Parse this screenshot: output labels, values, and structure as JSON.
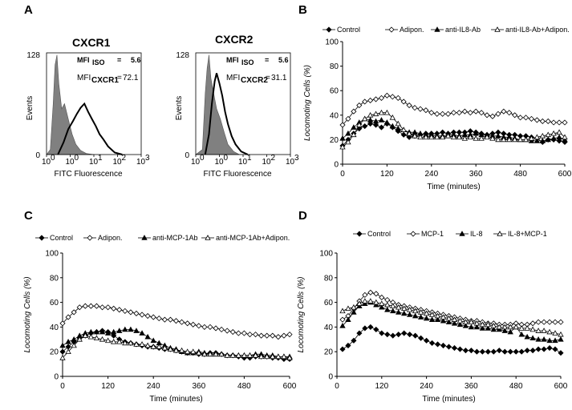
{
  "panels": {
    "a": {
      "letter": "A",
      "histograms": [
        {
          "title": "CXCR1",
          "ylabel": "Events",
          "xlabel": "FITC Fluorescence",
          "ytick_top": "128",
          "ytick_bottom": "0",
          "xticks": [
            "10",
            "10",
            "10",
            "10",
            "10"
          ],
          "xtick_exps": [
            "0",
            "0",
            "1",
            "2",
            "3"
          ],
          "mfi_iso_label": "MFI",
          "mfi_iso_sub": "ISO",
          "mfi_iso_eq": "=",
          "mfi_iso_value": "5.6",
          "mfi_rec_label": "MFI",
          "mfi_rec_sub": "CXCR1",
          "mfi_rec_eq": "=",
          "mfi_rec_value": "72.1"
        },
        {
          "title": "CXCR2",
          "ylabel": "Events",
          "xlabel": "FITC Fluorescence",
          "ytick_top": "128",
          "ytick_bottom": "0",
          "xticks": [
            "10",
            "10",
            "10",
            "10",
            "10"
          ],
          "xtick_exps": [
            "0",
            "0",
            "1",
            "2",
            "3"
          ],
          "mfi_iso_label": "MFI",
          "mfi_iso_sub": "ISO",
          "mfi_iso_eq": "=",
          "mfi_iso_value": "5.6",
          "mfi_rec_label": "MFI",
          "mfi_rec_sub": "CXCR2",
          "mfi_rec_eq": "=",
          "mfi_rec_value": "31.1"
        }
      ]
    },
    "b": {
      "letter": "B"
    },
    "c": {
      "letter": "C"
    },
    "d": {
      "letter": "D"
    }
  },
  "colors": {
    "ink": "#000000",
    "fill": "#808080",
    "hollow": "#ffffff",
    "grid": "#c0c0c0"
  },
  "chart_data": [
    {
      "id": "B",
      "type": "line",
      "xlabel": "Time (minutes)",
      "ylabel": "Locomoting Cells (%)",
      "xlim": [
        0,
        600
      ],
      "ylim": [
        0,
        100
      ],
      "xticks": [
        0,
        120,
        240,
        360,
        480,
        600
      ],
      "yticks": [
        0,
        20,
        40,
        60,
        80,
        100
      ],
      "legend_position": "top",
      "x": [
        0,
        15,
        30,
        45,
        60,
        75,
        90,
        105,
        120,
        135,
        150,
        165,
        180,
        195,
        210,
        225,
        240,
        255,
        270,
        285,
        300,
        315,
        330,
        345,
        360,
        375,
        390,
        405,
        420,
        435,
        450,
        465,
        480,
        495,
        510,
        525,
        540,
        555,
        570,
        585,
        600
      ],
      "series": [
        {
          "name": "Control",
          "marker": "diamond-filled",
          "values": [
            15,
            20,
            25,
            29,
            31,
            33,
            32,
            30,
            33,
            30,
            27,
            24,
            22,
            23,
            24,
            25,
            25,
            25,
            26,
            25,
            26,
            26,
            26,
            27,
            26,
            25,
            24,
            25,
            26,
            25,
            24,
            24,
            23,
            23,
            22,
            21,
            18,
            20,
            20,
            19,
            18
          ]
        },
        {
          "name": "Adipon.",
          "marker": "diamond-open",
          "values": [
            32,
            37,
            43,
            48,
            51,
            52,
            53,
            54,
            56,
            55,
            54,
            51,
            48,
            46,
            45,
            44,
            42,
            41,
            41,
            41,
            42,
            42,
            43,
            42,
            43,
            42,
            40,
            39,
            41,
            43,
            42,
            40,
            38,
            38,
            37,
            36,
            35,
            35,
            34,
            34,
            34
          ]
        },
        {
          "name": "anti-IL8-Ab",
          "marker": "triangle-filled",
          "values": [
            21,
            25,
            30,
            34,
            37,
            36,
            35,
            36,
            34,
            31,
            29,
            28,
            26,
            26,
            25,
            24,
            24,
            23,
            23,
            24,
            24,
            23,
            24,
            24,
            25,
            24,
            24,
            23,
            23,
            22,
            22,
            21,
            20,
            20,
            19,
            19,
            19,
            20,
            21,
            22,
            20
          ]
        },
        {
          "name": "anti-IL8-Ab+Adipon.",
          "marker": "triangle-open",
          "values": [
            14,
            18,
            24,
            32,
            37,
            40,
            41,
            42,
            42,
            38,
            33,
            28,
            25,
            23,
            22,
            22,
            22,
            22,
            22,
            23,
            22,
            22,
            21,
            22,
            21,
            21,
            22,
            21,
            20,
            20,
            20,
            20,
            20,
            20,
            21,
            22,
            23,
            24,
            25,
            26,
            22
          ]
        }
      ]
    },
    {
      "id": "C",
      "type": "line",
      "xlabel": "Time (minutes)",
      "ylabel": "Locomoting Cells (%)",
      "xlim": [
        0,
        600
      ],
      "ylim": [
        0,
        100
      ],
      "xticks": [
        0,
        120,
        240,
        360,
        480,
        600
      ],
      "yticks": [
        0,
        20,
        40,
        60,
        80,
        100
      ],
      "legend_position": "top",
      "x": [
        0,
        15,
        30,
        45,
        60,
        75,
        90,
        105,
        120,
        135,
        150,
        165,
        180,
        195,
        210,
        225,
        240,
        255,
        270,
        285,
        300,
        315,
        330,
        345,
        360,
        375,
        390,
        405,
        420,
        435,
        450,
        465,
        480,
        495,
        510,
        525,
        540,
        555,
        570,
        585,
        600
      ],
      "series": [
        {
          "name": "Control",
          "marker": "diamond-filled",
          "values": [
            20,
            24,
            28,
            31,
            33,
            35,
            36,
            37,
            36,
            33,
            30,
            28,
            27,
            26,
            25,
            24,
            24,
            23,
            22,
            22,
            21,
            20,
            19,
            19,
            18,
            18,
            19,
            19,
            18,
            17,
            17,
            16,
            15,
            15,
            16,
            16,
            16,
            15,
            15,
            14,
            14
          ]
        },
        {
          "name": "Adipon.",
          "marker": "diamond-open",
          "values": [
            43,
            48,
            52,
            56,
            57,
            57,
            57,
            56,
            56,
            55,
            54,
            53,
            52,
            51,
            50,
            49,
            48,
            47,
            46,
            46,
            45,
            44,
            43,
            42,
            41,
            40,
            40,
            39,
            38,
            37,
            36,
            35,
            35,
            34,
            34,
            33,
            33,
            33,
            32,
            33,
            34
          ]
        },
        {
          "name": "anti-MCP-1Ab",
          "marker": "triangle-filled",
          "values": [
            25,
            28,
            30,
            33,
            35,
            36,
            36,
            36,
            35,
            36,
            37,
            38,
            38,
            37,
            35,
            32,
            29,
            27,
            25,
            23,
            22,
            20,
            19,
            19,
            20,
            19,
            18,
            18,
            18,
            17,
            17,
            17,
            17,
            17,
            18,
            18,
            17,
            17,
            16,
            16,
            16
          ]
        },
        {
          "name": "anti-MCP-1Ab+Adipon.",
          "marker": "triangle-open",
          "values": [
            15,
            20,
            25,
            30,
            33,
            32,
            31,
            30,
            29,
            28,
            28,
            27,
            27,
            26,
            26,
            25,
            24,
            24,
            23,
            22,
            21,
            21,
            20,
            20,
            19,
            18,
            18,
            18,
            18,
            17,
            17,
            17,
            17,
            17,
            17,
            16,
            16,
            16,
            16,
            16,
            15
          ]
        }
      ]
    },
    {
      "id": "D",
      "type": "line",
      "xlabel": "Time (minutes)",
      "ylabel": "Locomoting Cells (%)",
      "xlim": [
        0,
        600
      ],
      "ylim": [
        0,
        100
      ],
      "xticks": [
        0,
        120,
        240,
        360,
        480,
        600
      ],
      "yticks": [
        0,
        20,
        40,
        60,
        80,
        100
      ],
      "legend_position": "top",
      "x": [
        15,
        30,
        45,
        60,
        75,
        90,
        105,
        120,
        135,
        150,
        165,
        180,
        195,
        210,
        225,
        240,
        255,
        270,
        285,
        300,
        315,
        330,
        345,
        360,
        375,
        390,
        405,
        420,
        435,
        450,
        465,
        480,
        495,
        510,
        525,
        540,
        555,
        570,
        585,
        600
      ],
      "series": [
        {
          "name": "Control",
          "marker": "diamond-filled",
          "values": [
            22,
            25,
            29,
            35,
            39,
            40,
            38,
            35,
            34,
            33,
            34,
            35,
            34,
            33,
            31,
            29,
            27,
            26,
            25,
            24,
            23,
            22,
            21,
            21,
            20,
            20,
            20,
            20,
            21,
            20,
            20,
            20,
            20,
            21,
            21,
            22,
            22,
            23,
            22,
            19
          ]
        },
        {
          "name": "MCP-1",
          "marker": "diamond-open",
          "values": [
            46,
            49,
            55,
            61,
            66,
            68,
            67,
            64,
            62,
            60,
            58,
            57,
            56,
            55,
            54,
            53,
            52,
            51,
            50,
            49,
            48,
            47,
            46,
            45,
            45,
            44,
            43,
            43,
            42,
            42,
            42,
            43,
            42,
            42,
            43,
            44,
            44,
            44,
            44,
            44
          ]
        },
        {
          "name": "IL-8",
          "marker": "triangle-filled",
          "values": [
            41,
            46,
            52,
            57,
            59,
            60,
            58,
            56,
            54,
            53,
            52,
            51,
            50,
            49,
            48,
            47,
            46,
            46,
            45,
            44,
            43,
            42,
            41,
            40,
            40,
            39,
            39,
            38,
            38,
            37,
            36,
            40,
            34,
            32,
            31,
            30,
            30,
            29,
            29,
            30
          ]
        },
        {
          "name": "IL-8+MCP-1",
          "marker": "triangle-open",
          "values": [
            53,
            55,
            56,
            59,
            61,
            61,
            60,
            59,
            58,
            57,
            56,
            55,
            54,
            53,
            52,
            51,
            50,
            49,
            48,
            47,
            46,
            45,
            44,
            44,
            43,
            42,
            42,
            41,
            40,
            40,
            40,
            40,
            39,
            39,
            38,
            37,
            37,
            36,
            35,
            34
          ]
        }
      ]
    }
  ]
}
